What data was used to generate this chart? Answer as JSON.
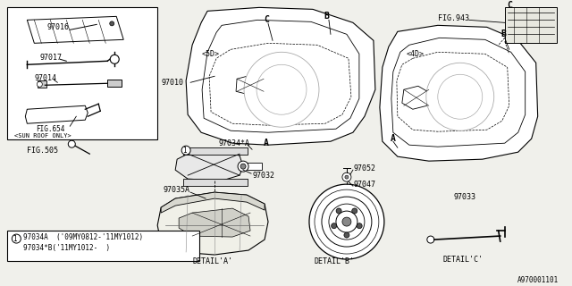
{
  "bg_color": "#f0f0eb",
  "line_color": "#000000",
  "box_bg": "#ffffff",
  "title_code": "A970001101",
  "note1": "97034A  ('09MY0812-'11MY1012)",
  "note2": "97034*B('11MY1012-  )"
}
